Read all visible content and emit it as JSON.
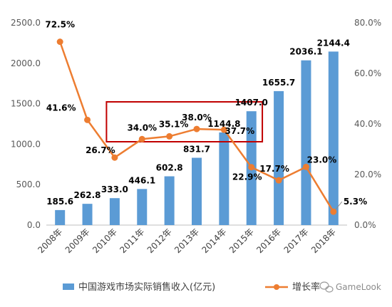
{
  "chart_data": {
    "type": "bar",
    "categories": [
      "2008年",
      "2009年",
      "2010年",
      "2011年",
      "2012年",
      "2013年",
      "2014年",
      "2015年",
      "2016年",
      "2017年",
      "2018年"
    ],
    "series": [
      {
        "name": "中国游戏市场实际销售收入(亿元)",
        "type": "bar",
        "axis": "left",
        "values": [
          185.6,
          262.8,
          333.0,
          446.1,
          602.8,
          831.7,
          1144.8,
          1407.0,
          1655.7,
          2036.1,
          2144.4
        ],
        "labels": [
          "185.6",
          "262.8",
          "333.0",
          "446.1",
          "602.8",
          "831.7",
          "1144.8",
          "1407.0",
          "1655.7",
          "2036.1",
          "2144.4"
        ]
      },
      {
        "name": "增长率",
        "type": "line",
        "axis": "right",
        "values": [
          72.5,
          41.6,
          26.7,
          34.0,
          35.1,
          38.0,
          37.7,
          22.9,
          17.7,
          23.0,
          5.3
        ],
        "labels": [
          "72.5%",
          "41.6%",
          "26.7%",
          "34.0%",
          "35.1%",
          "38.0%",
          "37.7%",
          "22.9%",
          "17.7%",
          "23.0%",
          "5.3%"
        ]
      }
    ],
    "y_left": {
      "ylim": [
        0,
        2500
      ],
      "ticks": [
        "0.0",
        "500.0",
        "1000.0",
        "1500.0",
        "2000.0",
        "2500.0"
      ]
    },
    "y_right": {
      "ylim": [
        0,
        80
      ],
      "ticks": [
        "0.0%",
        "20.0%",
        "40.0%",
        "60.0%",
        "80.0%"
      ]
    },
    "grid": false,
    "legend": "bottom",
    "annotation": {
      "type": "highlight-box",
      "from_category": "2010年",
      "to_category": "2015年",
      "color": "#c00000"
    },
    "colors": {
      "bar": "#5b9bd5",
      "line": "#ed7d31"
    }
  },
  "legend": {
    "bar_label": "中国游戏市场实际销售收入(亿元)",
    "line_label": "增长率"
  },
  "watermark": {
    "text": "GameLook",
    "icon": "wechat-icon"
  }
}
